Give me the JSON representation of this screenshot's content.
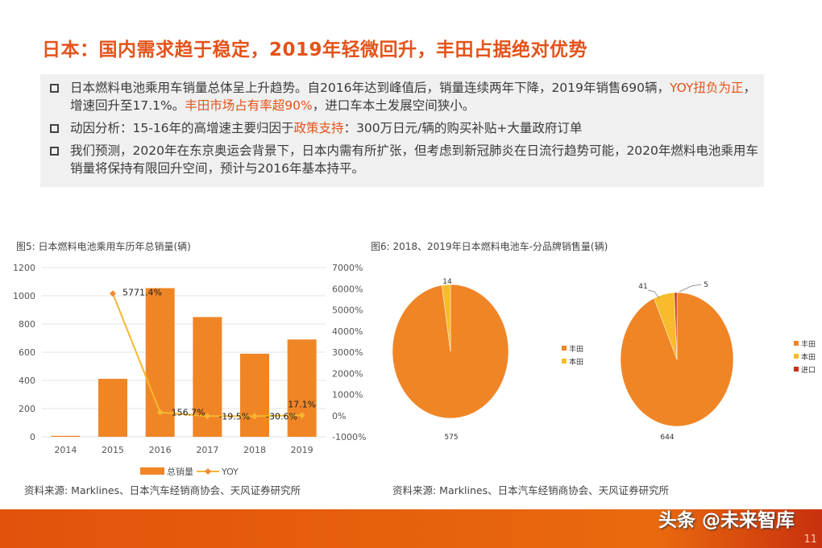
{
  "title": "日本：国内需求趋于稳定，2019年轻微回升，丰田占据绝对优势",
  "bullets": [
    {
      "parts": [
        "日本燃料电池乘用车销量总体呈上升趋势。自2016年达到峰值后，销量连续两年下降，2019年销售690辆，",
        "YOY扭负为正",
        "，增速回升至17.1%。",
        "丰田市场占有率超90%",
        "，进口车本土发展空间狭小。"
      ]
    },
    {
      "parts": [
        "动因分析：15-16年的高增速主要归因于",
        "政策支持",
        "：300万日元/辆的购买补贴+大量政府订单"
      ]
    },
    {
      "parts": [
        "我们预测，2020年在东京奥运会背景下，日本内需有所扩张，但考虑到新冠肺炎在日流行趋势可能，2020年燃料电池乘用车销量将保持有限回升空间，预计与2016年基本持平。"
      ]
    }
  ],
  "colors": {
    "accent": "#e4531b",
    "bar": "#f08526",
    "line": "#f5b731",
    "honda": "#f8bb2c",
    "import": "#c8321c"
  },
  "chart_data": [
    {
      "type": "bar",
      "title": "图5: 日本燃料电池乘用车历年总销量(辆)",
      "categories": [
        "2014",
        "2015",
        "2016",
        "2017",
        "2018",
        "2019"
      ],
      "series": [
        {
          "name": "总销量",
          "type": "bar",
          "axis": "left",
          "values": [
            7,
            411,
            1054,
            849,
            589,
            690
          ]
        },
        {
          "name": "YOY",
          "type": "line",
          "axis": "right",
          "values": [
            null,
            5771.4,
            156.7,
            -19.5,
            -30.6,
            17.1
          ],
          "labels": [
            "",
            "5771.4%",
            "156.7%",
            "-19.5%",
            "-30.6%",
            "17.1%"
          ]
        }
      ],
      "ylim": [
        0,
        1200
      ],
      "yticks": [
        "0",
        "200",
        "400",
        "600",
        "800",
        "1000",
        "1200"
      ],
      "y2lim": [
        -1000,
        7000
      ],
      "y2ticks": [
        "-1000%",
        "0%",
        "1000%",
        "2000%",
        "3000%",
        "4000%",
        "5000%",
        "6000%",
        "7000%"
      ],
      "grid": true,
      "legend": "bottom",
      "source": "资料来源: Marklines、日本汽车经销商协会、天风证券研究所"
    },
    {
      "type": "pie",
      "title": "图6: 2018、2019年日本燃料电池车-分品牌销售量(辆)",
      "source": "资料来源: Marklines、日本汽车经销商协会、天风证券研究所",
      "pies": [
        {
          "labels": [
            "丰田",
            "本田"
          ],
          "values": [
            575,
            14
          ]
        },
        {
          "labels": [
            "丰田",
            "本田",
            "进口"
          ],
          "values": [
            644,
            41,
            5
          ]
        }
      ],
      "legend": "right"
    }
  ],
  "footer": {
    "watermark": "头条 @未来智库",
    "page": "11"
  }
}
